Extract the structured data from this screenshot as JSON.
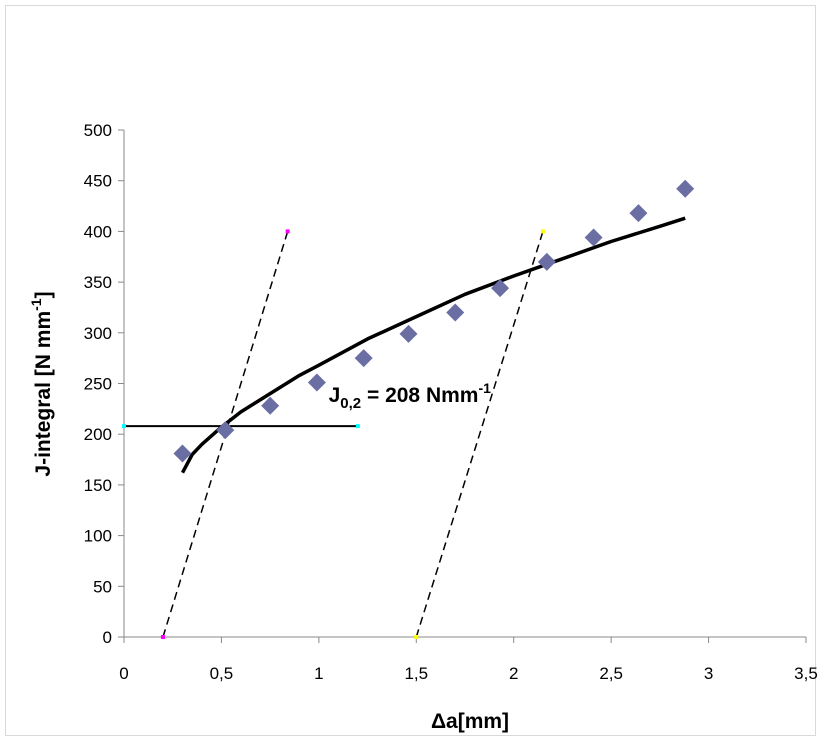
{
  "chart_data": {
    "type": "scatter",
    "xlabel": "Δa[mm]",
    "ylabel": "J-integral [N mm",
    "ylabel_sup": "-1",
    "xlim": [
      0,
      3.5
    ],
    "ylim": [
      0,
      500
    ],
    "x_ticks": [
      "0",
      "0,5",
      "1",
      "1,5",
      "2",
      "2,5",
      "3",
      "3,5"
    ],
    "y_ticks": [
      "0",
      "50",
      "100",
      "150",
      "200",
      "250",
      "300",
      "350",
      "400",
      "450",
      "500"
    ],
    "grid": false,
    "annotation": {
      "main": "J",
      "sub": "0,2",
      "rest": " = 208 Nmm",
      "sup": "-1",
      "x": 1.05,
      "y": 232
    },
    "measured_points": {
      "marker": "diamond",
      "color": "#6a6ea3",
      "x": [
        0.3,
        0.52,
        0.75,
        0.99,
        1.23,
        1.46,
        1.7,
        1.93,
        2.17,
        2.41,
        2.64,
        2.88
      ],
      "y": [
        181,
        204,
        228,
        251,
        275,
        299,
        320,
        344,
        370,
        394,
        418,
        442
      ]
    },
    "fit_curve": {
      "color": "#000000",
      "x": [
        0.3,
        0.35,
        0.4,
        0.5,
        0.6,
        0.75,
        0.9,
        1.0,
        1.25,
        1.5,
        1.75,
        2.0,
        2.25,
        2.5,
        2.75,
        2.88
      ],
      "y": [
        162,
        180,
        190,
        207,
        222,
        240,
        258,
        268,
        294,
        316,
        338,
        356,
        373,
        390,
        405,
        413
      ]
    },
    "blunting_line": {
      "style": "dashed",
      "color": "#000000",
      "x": [
        0.2,
        0.84
      ],
      "y": [
        0,
        400
      ],
      "end_marker_color": "#ff00ff"
    },
    "offset_line": {
      "style": "dashed",
      "color": "#000000",
      "x": [
        1.5,
        2.15
      ],
      "y": [
        0,
        400
      ],
      "end_marker_color": "#ffff00"
    },
    "j02_line": {
      "style": "solid",
      "color": "#000000",
      "x": [
        0,
        1.2
      ],
      "y": [
        208,
        208
      ],
      "end_marker_color": "#00ffff"
    }
  }
}
